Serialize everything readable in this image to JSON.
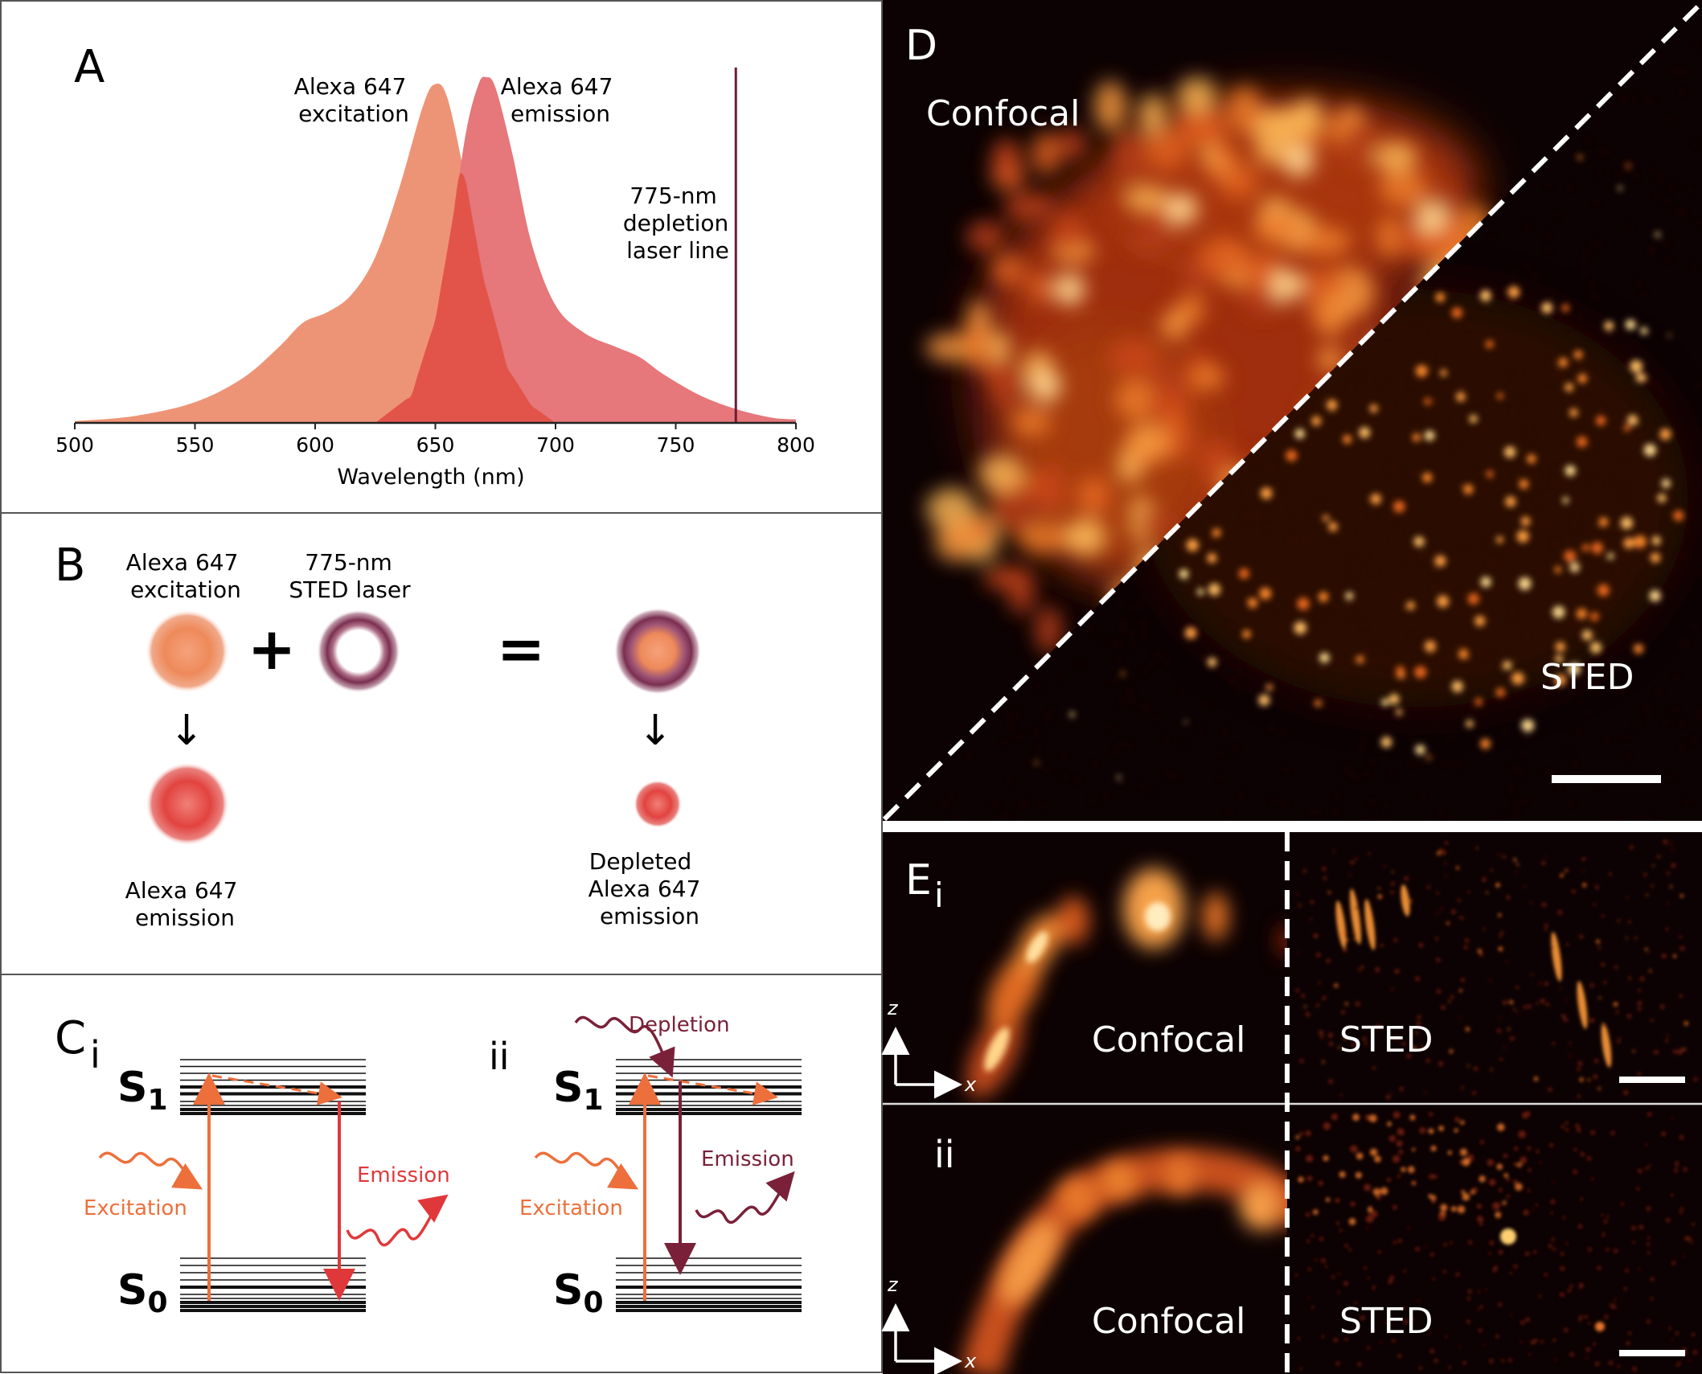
{
  "panel_a": {
    "letter": "A",
    "excitation_label": [
      "Alexa 647",
      "excitation"
    ],
    "emission_label": [
      "Alexa 647",
      "emission"
    ],
    "laser_label": [
      "775-nm",
      "depletion",
      "laser line"
    ],
    "xlabel": "Wavelength (nm)",
    "colors": {
      "excitation": "#ee9476",
      "emission": "#e6777a",
      "overlap": "#e2544a",
      "laser_line": "#6d1c33"
    }
  },
  "chart_data": {
    "type": "area",
    "xlabel": "Wavelength (nm)",
    "ylabel": "",
    "xlim": [
      500,
      800
    ],
    "ylim": [
      0,
      1
    ],
    "xticks": [
      500,
      550,
      600,
      650,
      700,
      750,
      800
    ],
    "grid": false,
    "vertical_line": {
      "x": 775,
      "label": "775-nm depletion laser line"
    },
    "series": [
      {
        "name": "Alexa 647 excitation",
        "x": [
          500,
          525,
          550,
          570,
          585,
          595,
          605,
          615,
          625,
          635,
          645,
          650,
          655,
          662,
          670,
          680,
          690,
          700
        ],
        "y": [
          0.005,
          0.02,
          0.06,
          0.13,
          0.22,
          0.29,
          0.32,
          0.37,
          0.48,
          0.68,
          0.92,
          0.98,
          0.94,
          0.72,
          0.42,
          0.16,
          0.05,
          0.0
        ]
      },
      {
        "name": "Alexa 647 emission",
        "x": [
          625,
          640,
          650,
          657,
          663,
          668,
          671,
          675,
          682,
          690,
          700,
          712,
          725,
          735,
          745,
          760,
          775,
          790,
          800
        ],
        "y": [
          0.0,
          0.08,
          0.3,
          0.58,
          0.85,
          0.98,
          1.0,
          0.97,
          0.78,
          0.52,
          0.34,
          0.26,
          0.22,
          0.19,
          0.14,
          0.08,
          0.04,
          0.015,
          0.01
        ]
      }
    ]
  },
  "panel_b": {
    "letter": "B",
    "excitation_label": [
      "Alexa 647",
      "excitation"
    ],
    "sted_label": [
      "775-nm",
      "STED laser"
    ],
    "plus": "+",
    "equals": "=",
    "arrow": "↓",
    "emission_label": [
      "Alexa 647",
      "emission"
    ],
    "depleted_label": [
      "Depleted",
      "Alexa 647",
      "emission"
    ]
  },
  "panel_c": {
    "letter": "C",
    "sub_i": "i",
    "sub_ii": "ii",
    "s1": "S",
    "s1_sub": "1",
    "s0": "S",
    "s0_sub": "0",
    "excitation": "Excitation",
    "emission": "Emission",
    "depletion": "Depletion",
    "colors": {
      "excitation": "#ed6f3c",
      "emission": "#e0383a",
      "depletion": "#7a2139"
    }
  },
  "panel_d": {
    "letter": "D",
    "confocal": "Confocal",
    "sted": "STED"
  },
  "panel_e": {
    "letter": "E",
    "sub_i": "i",
    "sub_ii": "ii",
    "confocal": "Confocal",
    "sted": "STED",
    "axis_z": "z",
    "axis_x": "x"
  }
}
